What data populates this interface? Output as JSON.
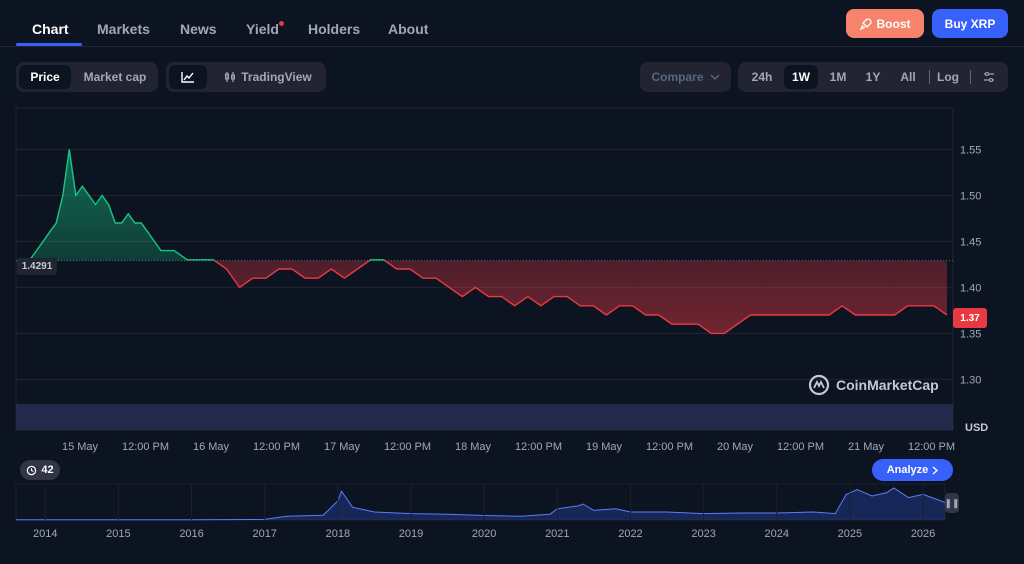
{
  "nav": {
    "tabs": [
      "Chart",
      "Markets",
      "News",
      "Yield",
      "Holders",
      "About"
    ],
    "active": "Chart",
    "boost_label": "Boost",
    "buy_label": "Buy XRP"
  },
  "toolbar": {
    "price_label": "Price",
    "marketcap_label": "Market cap",
    "tradingview_label": "TradingView",
    "compare_label": "Compare",
    "ranges": [
      "24h",
      "1W",
      "1M",
      "1Y",
      "All"
    ],
    "active_range": "1W",
    "log_label": "Log"
  },
  "chart": {
    "open_price_label": "1.4291",
    "current_price_label": "1.37",
    "currency_label": "USD",
    "watermark": "CoinMarketCap",
    "history_badge": "42",
    "analyze_label": "Analyze"
  },
  "colors": {
    "up": "#16c784",
    "down": "#ea3943",
    "accent": "#3861fb",
    "boost": "#f8836c",
    "volume": "#3a4a8f"
  },
  "icons": [
    "rocket-icon",
    "line-chart-icon",
    "candles-icon",
    "chevron-down-icon",
    "settings-sliders-icon",
    "history-icon",
    "chevron-right-icon",
    "coinmarketcap-logo-icon",
    "pause-handle-icon"
  ],
  "chart_data": [
    {
      "type": "line",
      "title": "",
      "x_ticks": [
        "15 May",
        "12:00 PM",
        "16 May",
        "12:00 PM",
        "17 May",
        "12:00 PM",
        "18 May",
        "12:00 PM",
        "19 May",
        "12:00 PM",
        "20 May",
        "12:00 PM",
        "21 May",
        "12:00 PM"
      ],
      "y_ticks": [
        1.3,
        1.35,
        1.4,
        1.45,
        1.5,
        1.55
      ],
      "ylim": [
        1.245,
        1.595
      ],
      "baseline": 1.4291,
      "last_value": 1.37,
      "ylabel": "USD",
      "series": [
        {
          "x": [
            0,
            0.05,
            0.1,
            0.15,
            0.2,
            0.25,
            0.3,
            0.35,
            0.4,
            0.45,
            0.5,
            0.55,
            0.6,
            0.65,
            0.7,
            0.75,
            0.8,
            0.85,
            0.9,
            0.95,
            1.0,
            1.1,
            1.2,
            1.3,
            1.4,
            1.5,
            1.6,
            1.7,
            1.8,
            1.9,
            2.0,
            2.1,
            2.2,
            2.3,
            2.4,
            2.5,
            2.6,
            2.7,
            2.8,
            2.9,
            3.0,
            3.1,
            3.2,
            3.3,
            3.4,
            3.5,
            3.6,
            3.7,
            3.8,
            3.9,
            4.0,
            4.1,
            4.2,
            4.3,
            4.4,
            4.5,
            4.6,
            4.7,
            4.8,
            4.9,
            5.0,
            5.1,
            5.2,
            5.3,
            5.4,
            5.5,
            5.6,
            5.7,
            5.8,
            5.9,
            6.0,
            6.1,
            6.2,
            6.3,
            6.4,
            6.5,
            6.6,
            6.7,
            6.8,
            6.9,
            7.0
          ],
          "y": [
            1.43,
            1.44,
            1.45,
            1.46,
            1.47,
            1.5,
            1.55,
            1.5,
            1.51,
            1.5,
            1.49,
            1.5,
            1.49,
            1.47,
            1.47,
            1.48,
            1.47,
            1.47,
            1.46,
            1.45,
            1.44,
            1.44,
            1.43,
            1.43,
            1.43,
            1.42,
            1.4,
            1.41,
            1.41,
            1.42,
            1.42,
            1.41,
            1.41,
            1.42,
            1.41,
            1.42,
            1.43,
            1.43,
            1.42,
            1.42,
            1.41,
            1.41,
            1.4,
            1.39,
            1.4,
            1.39,
            1.39,
            1.38,
            1.39,
            1.38,
            1.39,
            1.39,
            1.38,
            1.38,
            1.37,
            1.38,
            1.38,
            1.37,
            1.37,
            1.36,
            1.36,
            1.36,
            1.35,
            1.35,
            1.36,
            1.37,
            1.37,
            1.37,
            1.37,
            1.37,
            1.37,
            1.37,
            1.38,
            1.37,
            1.37,
            1.37,
            1.37,
            1.38,
            1.38,
            1.38,
            1.37
          ]
        }
      ]
    },
    {
      "type": "area",
      "title": "",
      "x_ticks": [
        "2014",
        "2015",
        "2016",
        "2017",
        "2018",
        "2019",
        "2020",
        "2021",
        "2022",
        "2023",
        "2024",
        "2025",
        "2026"
      ],
      "series": [
        {
          "x": [
            2013.6,
            2014,
            2015,
            2016,
            2017,
            2017.3,
            2017.8,
            2018.0,
            2018.05,
            2018.2,
            2018.5,
            2019,
            2019.5,
            2020,
            2020.5,
            2020.9,
            2021.0,
            2021.3,
            2021.35,
            2021.5,
            2021.8,
            2022,
            2022.5,
            2023,
            2023.5,
            2024,
            2024.5,
            2024.8,
            2024.95,
            2025.1,
            2025.3,
            2025.5,
            2025.6,
            2025.8,
            2026.0,
            2026.3
          ],
          "y": [
            0.01,
            0.01,
            0.01,
            0.01,
            0.02,
            0.12,
            0.15,
            0.6,
            0.9,
            0.4,
            0.25,
            0.2,
            0.18,
            0.14,
            0.12,
            0.18,
            0.35,
            0.45,
            0.5,
            0.3,
            0.35,
            0.25,
            0.25,
            0.2,
            0.22,
            0.22,
            0.25,
            0.2,
            0.8,
            0.95,
            0.75,
            0.85,
            1.0,
            0.7,
            0.8,
            0.55
          ]
        }
      ]
    }
  ]
}
